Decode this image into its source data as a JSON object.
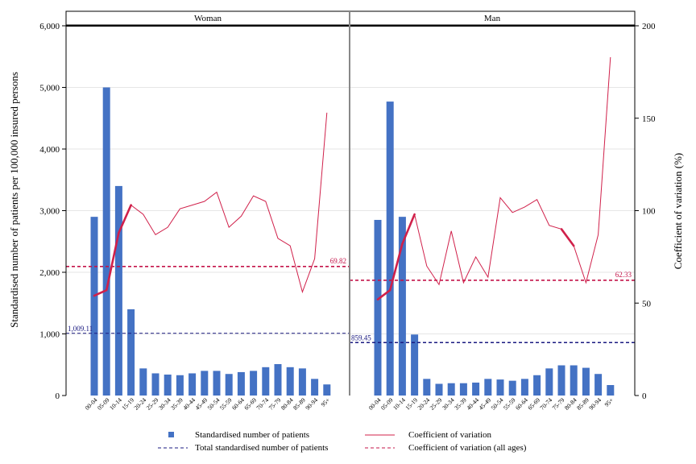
{
  "chart_data": {
    "type": "bar",
    "panels": [
      {
        "title": "Woman",
        "categories": [
          "00-04",
          "05-09",
          "10-14",
          "15-19",
          "20-24",
          "25-29",
          "30-34",
          "35-39",
          "40-44",
          "45-49",
          "50-54",
          "55-59",
          "60-64",
          "65-69",
          "70-74",
          "75-79",
          "80-84",
          "85-89",
          "90-94",
          "95+"
        ],
        "bars": [
          2900,
          5000,
          3400,
          1400,
          440,
          360,
          340,
          330,
          360,
          400,
          400,
          350,
          380,
          400,
          460,
          510,
          460,
          440,
          270,
          180
        ],
        "cv": [
          54,
          57,
          88,
          103,
          98,
          87,
          91,
          101,
          103,
          105,
          110,
          91,
          97,
          108,
          105,
          85,
          81,
          56,
          74,
          153
        ],
        "cv_bold": [
          true,
          true,
          true,
          true,
          false,
          false,
          false,
          false,
          false,
          false,
          false,
          false,
          false,
          false,
          false,
          false,
          false,
          false,
          false,
          false
        ],
        "total_patients": 1009.11,
        "total_patients_label": "1,009.11",
        "cv_all": 69.82,
        "cv_all_label": "69.82"
      },
      {
        "title": "Man",
        "categories": [
          "00-04",
          "05-09",
          "10-14",
          "15-19",
          "20-24",
          "25-29",
          "30-34",
          "35-39",
          "40-44",
          "45-49",
          "50-54",
          "55-59",
          "60-64",
          "65-69",
          "70-74",
          "75-79",
          "80-84",
          "85-89",
          "90-94",
          "95+"
        ],
        "bars": [
          2850,
          4770,
          2900,
          990,
          270,
          190,
          200,
          200,
          210,
          270,
          260,
          240,
          270,
          330,
          440,
          490,
          490,
          450,
          350,
          170
        ],
        "cv": [
          52,
          57,
          82,
          98,
          70,
          60,
          89,
          61,
          75,
          64,
          107,
          99,
          102,
          106,
          92,
          90,
          81,
          61,
          87,
          183
        ],
        "cv_bold": [
          true,
          true,
          true,
          true,
          false,
          false,
          false,
          false,
          false,
          false,
          false,
          false,
          false,
          false,
          false,
          true,
          true,
          false,
          false,
          false
        ],
        "total_patients": 859.45,
        "total_patients_label": "859.45",
        "cv_all": 62.33,
        "cv_all_label": "62.33"
      }
    ],
    "ylabel": "Standardised number of patients per 100,000 insured persons",
    "y2label": "Coefficient of variation (%)",
    "ylim": [
      0,
      6000
    ],
    "yticks": [
      0,
      1000,
      2000,
      3000,
      4000,
      5000,
      6000
    ],
    "ytick_labels": [
      "0",
      "1,000",
      "2,000",
      "3,000",
      "4,000",
      "5,000",
      "6,000"
    ],
    "y2lim": [
      0,
      200
    ],
    "y2ticks": [
      0,
      50,
      100,
      150,
      200
    ],
    "y2tick_labels": [
      "0",
      "50",
      "100",
      "150",
      "200"
    ],
    "legend": {
      "position": "bottom",
      "items": [
        {
          "key": "bar",
          "label": "Standardised number of patients"
        },
        {
          "key": "cv",
          "label": "Coefficient of variation"
        },
        {
          "key": "total",
          "label": "Total standardised number of patients"
        },
        {
          "key": "cvall",
          "label": "Coefficient of variation (all ages)"
        }
      ]
    },
    "colors": {
      "bar": "#4472c4",
      "cv": "#d0204a",
      "total": "#1a1a80",
      "cvall": "#c4144a",
      "strip": "#ffffff",
      "frame": "#000000"
    }
  }
}
